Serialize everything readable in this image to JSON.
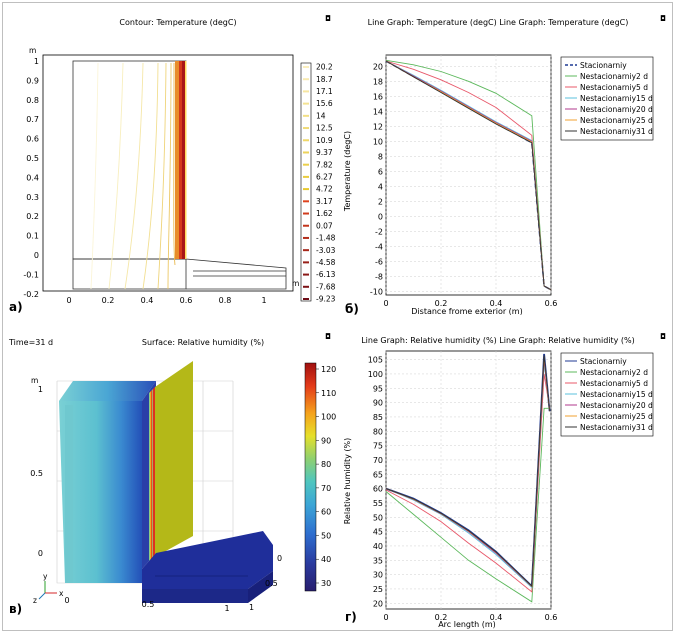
{
  "panels": {
    "a": {
      "label": "а)",
      "title": "Contour: Temperature (degC)",
      "unit_y": "m",
      "unit_x": "m",
      "x_ticks": [
        "0",
        "0.2",
        "0.4",
        "0.6",
        "0.8",
        "1"
      ],
      "y_ticks": [
        "1",
        "0.9",
        "0.8",
        "0.7",
        "0.6",
        "0.5",
        "0.4",
        "0.3",
        "0.2",
        "0.1",
        "0",
        "-0.1",
        "-0.2"
      ],
      "colorbar_labels": [
        "20.2",
        "18.7",
        "17.1",
        "15.6",
        "14",
        "12.5",
        "10.9",
        "9.37",
        "7.82",
        "6.27",
        "4.72",
        "3.17",
        "1.62",
        "0.07",
        "-1.48",
        "-3.03",
        "-4.58",
        "-6.13",
        "-7.68",
        "-9.23"
      ]
    },
    "b": {
      "label": "б)",
      "title": "Line Graph: Temperature (degC)  Line Graph: Temperature (degC)",
      "ylabel": "Temperature (degC)",
      "xlabel": "Distance frome exterior (m)"
    },
    "c": {
      "label": "в)",
      "time_label": "Time=31 d",
      "title": "Surface: Relative humidity (%)",
      "unit_y": "m",
      "y_ticks": [
        "1",
        "0.5",
        "0"
      ],
      "x_ticks": [
        "0",
        "0.5",
        "1"
      ],
      "z_ticks": [
        "0",
        "0.5",
        "1"
      ],
      "axis_y": "y",
      "axis_z": "z",
      "axis_x": "x",
      "colorbar_ticks": [
        "120",
        "110",
        "100",
        "90",
        "80",
        "70",
        "60",
        "50",
        "40",
        "30"
      ]
    },
    "d": {
      "label": "г)",
      "title": "Line Graph: Relative humidity (%)  Line Graph: Relative humidity (%)",
      "ylabel": "Relative humidity (%)",
      "xlabel": "Arc length (m)"
    }
  },
  "chart_data": [
    {
      "type": "line",
      "title": "Line Graph: Temperature (degC)  Line Graph: Temperature (degC)",
      "xlabel": "Distance frome exterior (m)",
      "ylabel": "Temperature (degC)",
      "xlim": [
        0,
        0.6
      ],
      "ylim": [
        -10.5,
        21.5
      ],
      "x_ticks": [
        0,
        0.2,
        0.4,
        0.6
      ],
      "y_ticks": [
        -10,
        -8,
        -6,
        -4,
        -2,
        0,
        2,
        4,
        6,
        8,
        10,
        12,
        14,
        16,
        18,
        20
      ],
      "legend_position": "top-right",
      "series": [
        {
          "name": "Stacionarniy",
          "color": "#1f3a93",
          "dash": true,
          "points": [
            [
              0,
              20.7
            ],
            [
              0.53,
              9.8
            ],
            [
              0.575,
              -9.3
            ],
            [
              0.6,
              -9.8
            ]
          ]
        },
        {
          "name": "Nestacionarniy2 d",
          "color": "#5cb85c",
          "dash": false,
          "points": [
            [
              0,
              20.8
            ],
            [
              0.1,
              20.2
            ],
            [
              0.2,
              19.3
            ],
            [
              0.3,
              18.0
            ],
            [
              0.4,
              16.4
            ],
            [
              0.53,
              13.4
            ],
            [
              0.575,
              -9.3
            ],
            [
              0.6,
              -9.8
            ]
          ]
        },
        {
          "name": "Nestacionarniy5 d",
          "color": "#e8586a",
          "dash": false,
          "points": [
            [
              0,
              20.7
            ],
            [
              0.1,
              19.6
            ],
            [
              0.2,
              18.2
            ],
            [
              0.3,
              16.5
            ],
            [
              0.4,
              14.5
            ],
            [
              0.53,
              10.8
            ],
            [
              0.575,
              -9.3
            ],
            [
              0.6,
              -9.8
            ]
          ]
        },
        {
          "name": "Nestacionarniy15 d",
          "color": "#5bc0de",
          "dash": false,
          "points": [
            [
              0,
              20.7
            ],
            [
              0.1,
              18.8
            ],
            [
              0.2,
              16.8
            ],
            [
              0.3,
              14.7
            ],
            [
              0.4,
              12.6
            ],
            [
              0.53,
              10.1
            ],
            [
              0.575,
              -9.3
            ],
            [
              0.6,
              -9.8
            ]
          ]
        },
        {
          "name": "Nestacionarniy20 d",
          "color": "#b03a8c",
          "dash": false,
          "points": [
            [
              0,
              20.7
            ],
            [
              0.1,
              18.7
            ],
            [
              0.2,
              16.7
            ],
            [
              0.3,
              14.6
            ],
            [
              0.4,
              12.5
            ],
            [
              0.53,
              10.0
            ],
            [
              0.575,
              -9.3
            ],
            [
              0.6,
              -9.8
            ]
          ]
        },
        {
          "name": "Nestacionarniy25 d",
          "color": "#f0a030",
          "dash": false,
          "points": [
            [
              0,
              20.7
            ],
            [
              0.1,
              18.6
            ],
            [
              0.2,
              16.6
            ],
            [
              0.3,
              14.5
            ],
            [
              0.4,
              12.4
            ],
            [
              0.53,
              9.9
            ],
            [
              0.575,
              -9.3
            ],
            [
              0.6,
              -9.8
            ]
          ]
        },
        {
          "name": "Nestacionarniy31 d",
          "color": "#333333",
          "dash": false,
          "points": [
            [
              0,
              20.7
            ],
            [
              0.1,
              18.6
            ],
            [
              0.2,
              16.5
            ],
            [
              0.3,
              14.4
            ],
            [
              0.4,
              12.3
            ],
            [
              0.53,
              9.8
            ],
            [
              0.575,
              -9.3
            ],
            [
              0.6,
              -9.8
            ]
          ]
        }
      ]
    },
    {
      "type": "line",
      "title": "Line Graph: Relative humidity (%)  Line Graph: Relative humidity (%)",
      "xlabel": "Arc length (m)",
      "ylabel": "Relative humidity (%)",
      "xlim": [
        0,
        0.6
      ],
      "ylim": [
        18,
        108
      ],
      "x_ticks": [
        0,
        0.2,
        0.4,
        0.6
      ],
      "y_ticks": [
        20,
        25,
        30,
        35,
        40,
        45,
        50,
        55,
        60,
        65,
        70,
        75,
        80,
        85,
        90,
        95,
        100,
        105
      ],
      "legend_position": "top-right",
      "series": [
        {
          "name": "Stacionarniy",
          "color": "#1f3a93",
          "dash": false,
          "width": 1.8,
          "points": [
            [
              0,
              60
            ],
            [
              0.1,
              56.5
            ],
            [
              0.2,
              51.5
            ],
            [
              0.3,
              45.5
            ],
            [
              0.4,
              38
            ],
            [
              0.53,
              26
            ],
            [
              0.575,
              107
            ],
            [
              0.595,
              87
            ]
          ]
        },
        {
          "name": "Nestacionarniy2 d",
          "color": "#5cb85c",
          "dash": false,
          "points": [
            [
              0,
              59
            ],
            [
              0.1,
              51
            ],
            [
              0.2,
              43
            ],
            [
              0.3,
              35
            ],
            [
              0.4,
              28.5
            ],
            [
              0.53,
              20.5
            ],
            [
              0.575,
              88
            ],
            [
              0.595,
              88
            ]
          ]
        },
        {
          "name": "Nestacionarniy5 d",
          "color": "#e8586a",
          "dash": false,
          "points": [
            [
              0,
              59.5
            ],
            [
              0.1,
              54.5
            ],
            [
              0.2,
              48.5
            ],
            [
              0.3,
              41
            ],
            [
              0.4,
              34
            ],
            [
              0.53,
              24
            ],
            [
              0.575,
              100
            ],
            [
              0.595,
              88
            ]
          ]
        },
        {
          "name": "Nestacionarniy15 d",
          "color": "#5bc0de",
          "dash": false,
          "points": [
            [
              0,
              60
            ],
            [
              0.1,
              56
            ],
            [
              0.2,
              51
            ],
            [
              0.3,
              44.5
            ],
            [
              0.4,
              37
            ],
            [
              0.53,
              25.5
            ],
            [
              0.575,
              104
            ],
            [
              0.595,
              87
            ]
          ]
        },
        {
          "name": "Nestacionarniy20 d",
          "color": "#b03a8c",
          "dash": false,
          "points": [
            [
              0,
              60
            ],
            [
              0.1,
              56.2
            ],
            [
              0.2,
              51.2
            ],
            [
              0.3,
              45
            ],
            [
              0.4,
              37.5
            ],
            [
              0.53,
              25.8
            ],
            [
              0.575,
              105
            ],
            [
              0.595,
              87
            ]
          ]
        },
        {
          "name": "Nestacionarniy25 d",
          "color": "#f0a030",
          "dash": false,
          "points": [
            [
              0,
              60
            ],
            [
              0.1,
              56.3
            ],
            [
              0.2,
              51.3
            ],
            [
              0.3,
              45.2
            ],
            [
              0.4,
              37.8
            ],
            [
              0.53,
              25.9
            ],
            [
              0.575,
              106
            ],
            [
              0.595,
              87
            ]
          ]
        },
        {
          "name": "Nestacionarniy31 d",
          "color": "#333333",
          "dash": false,
          "points": [
            [
              0,
              60
            ],
            [
              0.1,
              56.4
            ],
            [
              0.2,
              51.4
            ],
            [
              0.3,
              45.3
            ],
            [
              0.4,
              37.9
            ],
            [
              0.53,
              26
            ],
            [
              0.575,
              106.5
            ],
            [
              0.595,
              87
            ]
          ]
        }
      ]
    }
  ]
}
